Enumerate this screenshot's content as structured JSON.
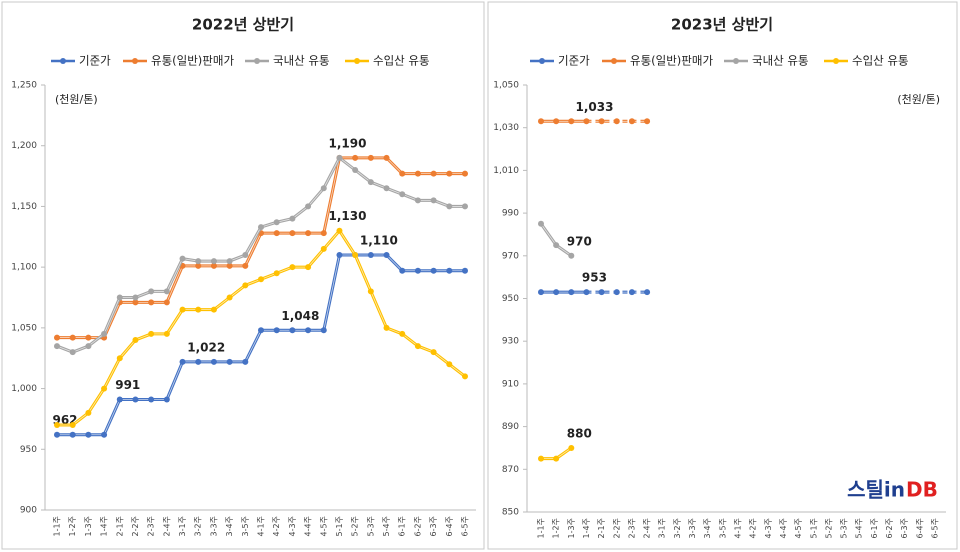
{
  "chart_data": [
    {
      "type": "line",
      "title": "2022년 상반기",
      "unit_label": "(천원/톤)",
      "legend": "top",
      "categories": [
        "1-1주",
        "1-2주",
        "1-3주",
        "1-4주",
        "2-1주",
        "2-2주",
        "2-3주",
        "2-4주",
        "3-1주",
        "3-2주",
        "3-3주",
        "3-4주",
        "3-5주",
        "4-1주",
        "4-2주",
        "4-3주",
        "4-4주",
        "4-5주",
        "5-1주",
        "5-2주",
        "5-3주",
        "5-4주",
        "6-1주",
        "6-2주",
        "6-3주",
        "6-4주",
        "6-5주"
      ],
      "ylim": [
        900,
        1250
      ],
      "yticks": [
        900,
        950,
        {
          "value": 1000,
          "label": "1,000"
        },
        {
          "value": 1050,
          "label": "1,050"
        },
        {
          "value": 1100,
          "label": "1,100"
        },
        {
          "value": 1150,
          "label": "1,150"
        },
        {
          "value": 1200,
          "label": "1,200"
        },
        {
          "value": 1250,
          "label": "1,250"
        }
      ],
      "series": [
        {
          "name": "기준가",
          "color": "#4472c4",
          "values": [
            962,
            962,
            962,
            962,
            991,
            991,
            991,
            991,
            1022,
            1022,
            1022,
            1022,
            1022,
            1048,
            1048,
            1048,
            1048,
            1048,
            1110,
            1110,
            1110,
            1110,
            1097,
            1097,
            1097,
            1097,
            1097
          ],
          "value_labels": [
            "962",
            null,
            null,
            null,
            "991",
            null,
            null,
            null,
            null,
            "1,022",
            null,
            null,
            null,
            null,
            null,
            "1,048",
            null,
            null,
            null,
            null,
            "1,110",
            null,
            null,
            null,
            null,
            null,
            null
          ]
        },
        {
          "name": "유통(일반)판매가",
          "color": "#ed7d31",
          "values": [
            1042,
            1042,
            1042,
            1042,
            1071,
            1071,
            1071,
            1071,
            1101,
            1101,
            1101,
            1101,
            1101,
            1128,
            1128,
            1128,
            1128,
            1128,
            1190,
            1190,
            1190,
            1190,
            1177,
            1177,
            1177,
            1177,
            1177
          ],
          "value_labels": [
            null,
            null,
            null,
            null,
            null,
            null,
            null,
            null,
            null,
            null,
            null,
            null,
            null,
            null,
            null,
            null,
            null,
            null,
            "1,190",
            null,
            null,
            null,
            null,
            null,
            null,
            null,
            null
          ]
        },
        {
          "name": "국내산 유통",
          "color": "#a5a5a5",
          "values": [
            1035,
            1030,
            1035,
            1045,
            1075,
            1075,
            1080,
            1080,
            1107,
            1105,
            1105,
            1105,
            1110,
            1133,
            1137,
            1140,
            1150,
            1165,
            1190,
            1180,
            1170,
            1165,
            1160,
            1155,
            1155,
            1150,
            1150
          ]
        },
        {
          "name": "수입산 유통",
          "color": "#ffc000",
          "values": [
            970,
            970,
            980,
            1000,
            1025,
            1040,
            1045,
            1045,
            1065,
            1065,
            1065,
            1075,
            1085,
            1090,
            1095,
            1100,
            1100,
            1115,
            1130,
            1110,
            1080,
            1050,
            1045,
            1035,
            1030,
            1020,
            1010
          ],
          "value_labels": [
            null,
            null,
            null,
            null,
            null,
            null,
            null,
            null,
            null,
            null,
            null,
            null,
            null,
            null,
            null,
            null,
            null,
            null,
            "1,130",
            null,
            null,
            null,
            null,
            null,
            null,
            null,
            null
          ]
        }
      ]
    },
    {
      "type": "line",
      "title": "2023년 상반기",
      "unit_label": "(천원/톤)",
      "legend": "top",
      "categories": [
        "1-1주",
        "1-2주",
        "1-3주",
        "1-4주",
        "2-1주",
        "2-2주",
        "2-3주",
        "2-4주",
        "3-1주",
        "3-2주",
        "3-3주",
        "3-4주",
        "3-5주",
        "4-1주",
        "4-2주",
        "4-3주",
        "4-4주",
        "4-5주",
        "5-1주",
        "5-2주",
        "5-3주",
        "5-4주",
        "6-1주",
        "6-2주",
        "6-3주",
        "6-4주",
        "6-5주"
      ],
      "ylim": [
        850,
        1050
      ],
      "yticks": [
        850,
        870,
        890,
        910,
        930,
        950,
        970,
        990,
        {
          "value": 1010,
          "label": "1,010"
        },
        {
          "value": 1030,
          "label": "1,030"
        },
        {
          "value": 1050,
          "label": "1,050"
        }
      ],
      "series": [
        {
          "name": "기준가",
          "color": "#4472c4",
          "dash_from": 3,
          "values": [
            953,
            953,
            953,
            953,
            953,
            953,
            953,
            953,
            null,
            null,
            null,
            null,
            null,
            null,
            null,
            null,
            null,
            null,
            null,
            null,
            null,
            null,
            null,
            null,
            null,
            null,
            null
          ],
          "value_labels": [
            null,
            null,
            null,
            "953",
            null,
            null,
            null,
            null,
            null,
            null,
            null,
            null,
            null,
            null,
            null,
            null,
            null,
            null,
            null,
            null,
            null,
            null,
            null,
            null,
            null,
            null,
            null
          ]
        },
        {
          "name": "유통(일반)판매가",
          "color": "#ed7d31",
          "dash_from": 3,
          "values": [
            1033,
            1033,
            1033,
            1033,
            1033,
            1033,
            1033,
            1033,
            null,
            null,
            null,
            null,
            null,
            null,
            null,
            null,
            null,
            null,
            null,
            null,
            null,
            null,
            null,
            null,
            null,
            null,
            null
          ],
          "value_labels": [
            null,
            null,
            null,
            "1,033",
            null,
            null,
            null,
            null,
            null,
            null,
            null,
            null,
            null,
            null,
            null,
            null,
            null,
            null,
            null,
            null,
            null,
            null,
            null,
            null,
            null,
            null,
            null
          ]
        },
        {
          "name": "국내산 유통",
          "color": "#a5a5a5",
          "values": [
            985,
            975,
            970,
            null,
            null,
            null,
            null,
            null,
            null,
            null,
            null,
            null,
            null,
            null,
            null,
            null,
            null,
            null,
            null,
            null,
            null,
            null,
            null,
            null,
            null,
            null,
            null
          ],
          "value_labels": [
            null,
            null,
            "970",
            null,
            null,
            null,
            null,
            null,
            null,
            null,
            null,
            null,
            null,
            null,
            null,
            null,
            null,
            null,
            null,
            null,
            null,
            null,
            null,
            null,
            null,
            null,
            null
          ]
        },
        {
          "name": "수입산 유통",
          "color": "#ffc000",
          "values": [
            875,
            875,
            880,
            null,
            null,
            null,
            null,
            null,
            null,
            null,
            null,
            null,
            null,
            null,
            null,
            null,
            null,
            null,
            null,
            null,
            null,
            null,
            null,
            null,
            null,
            null,
            null
          ],
          "value_labels": [
            null,
            null,
            "880",
            null,
            null,
            null,
            null,
            null,
            null,
            null,
            null,
            null,
            null,
            null,
            null,
            null,
            null,
            null,
            null,
            null,
            null,
            null,
            null,
            null,
            null,
            null,
            null
          ]
        }
      ]
    }
  ],
  "logo": {
    "main": "스틸in",
    "accent": "DB"
  }
}
